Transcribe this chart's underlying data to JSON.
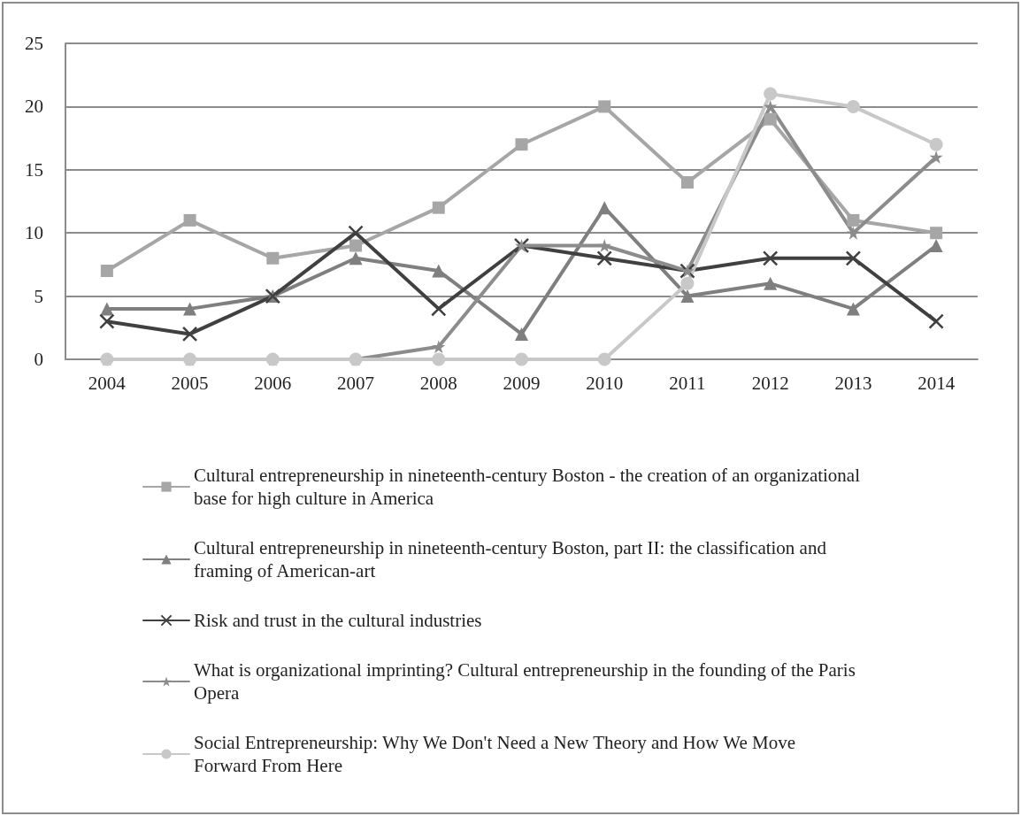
{
  "chart_data": {
    "type": "line",
    "categories": [
      "2004",
      "2005",
      "2006",
      "2007",
      "2008",
      "2009",
      "2010",
      "2011",
      "2012",
      "2013",
      "2014"
    ],
    "series": [
      {
        "name": "Cultural entrepreneurship in nineteenth-century Boston - the creation of an organizational base for high culture in America",
        "color": "#a6a6a6",
        "marker": "square",
        "values": [
          7,
          11,
          8,
          9,
          12,
          17,
          20,
          14,
          19,
          11,
          10
        ]
      },
      {
        "name": "Cultural entrepreneurship in nineteenth-century Boston, part II: the classification and framing of American-art",
        "color": "#7f7f7f",
        "marker": "triangle",
        "values": [
          4,
          4,
          5,
          8,
          7,
          2,
          12,
          5,
          6,
          4,
          9
        ]
      },
      {
        "name": "Risk and trust in the cultural industries",
        "color": "#404040",
        "marker": "cross",
        "values": [
          3,
          2,
          5,
          10,
          4,
          9,
          8,
          7,
          8,
          8,
          3
        ]
      },
      {
        "name": "What is organizational imprinting? Cultural entrepreneurship in the founding of the Paris Opera",
        "color": "#8c8c8c",
        "marker": "star",
        "values": [
          0,
          0,
          0,
          0,
          1,
          9,
          9,
          7,
          20,
          10,
          16
        ]
      },
      {
        "name": "Social Entrepreneurship: Why We Don't Need a New Theory and How We Move Forward From Here",
        "color": "#c8c8c8",
        "marker": "circle",
        "values": [
          0,
          0,
          0,
          0,
          0,
          0,
          0,
          6,
          21,
          20,
          17
        ]
      }
    ],
    "ylim": [
      0,
      25
    ],
    "yticks": [
      0,
      5,
      10,
      15,
      20,
      25
    ],
    "grid": "y",
    "legend": "bottom",
    "line_style": "solid"
  }
}
